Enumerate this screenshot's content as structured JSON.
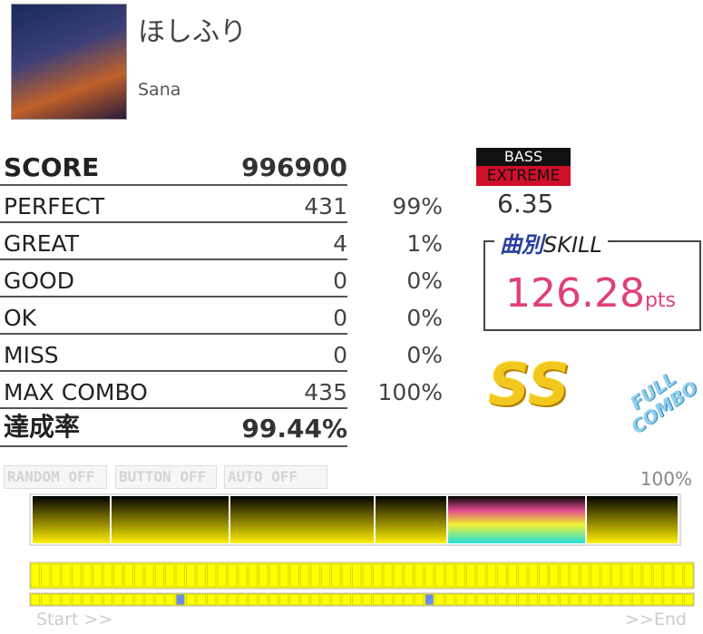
{
  "song": {
    "title": "ほしふり",
    "artist": "Sana"
  },
  "results": {
    "score": {
      "label": "SCORE",
      "value": 996900
    },
    "rows": [
      {
        "label": "PERFECT",
        "count": 431,
        "percent": "99%"
      },
      {
        "label": "GREAT",
        "count": 4,
        "percent": "1%"
      },
      {
        "label": "GOOD",
        "count": 0,
        "percent": "0%"
      },
      {
        "label": "OK",
        "count": 0,
        "percent": "0%"
      },
      {
        "label": "MISS",
        "count": 0,
        "percent": "0%"
      },
      {
        "label": "MAX COMBO",
        "count": 435,
        "percent": "100%"
      }
    ],
    "achievement": {
      "label": "達成率",
      "value": "99.44%"
    }
  },
  "difficulty": {
    "instrument": "BASS",
    "level_name": "EXTREME",
    "level": 6.35
  },
  "skill": {
    "label_prefix": "曲別",
    "label": "SKILL",
    "value": 126.28,
    "unit": "pts"
  },
  "rank": "SS",
  "clear_badge": "FULL COMBO",
  "options": [
    "RANDOM OFF",
    "BUTTON OFF",
    "AUTO OFF"
  ],
  "progress": {
    "label": "100%",
    "start": "Start >>",
    "end": ">>End"
  }
}
